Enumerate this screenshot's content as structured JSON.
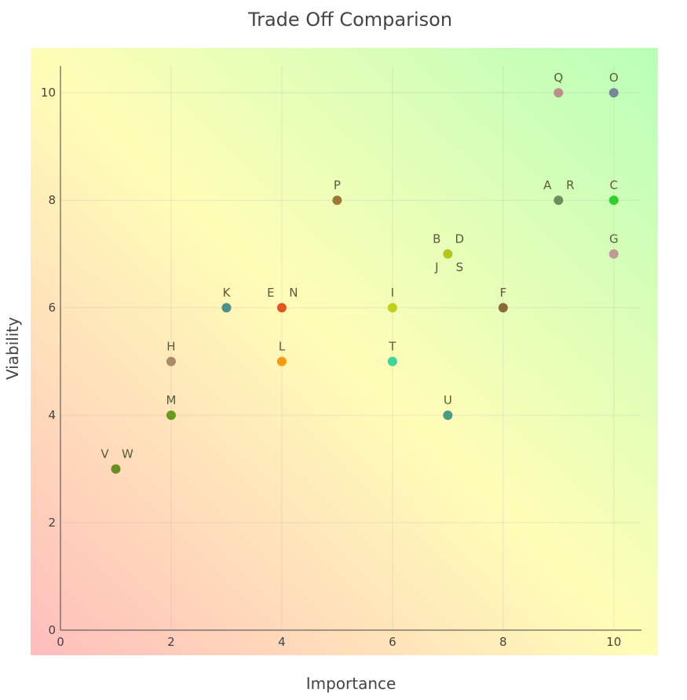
{
  "chart_data": {
    "type": "scatter",
    "title": "Trade Off Comparison",
    "xlabel": "Importance",
    "ylabel": "Viability",
    "xlim": [
      0,
      10.5
    ],
    "ylim": [
      0,
      10.5
    ],
    "x_ticks": [
      0,
      2,
      4,
      6,
      8,
      10
    ],
    "y_ticks": [
      0,
      2,
      4,
      6,
      8,
      10
    ],
    "grid": true,
    "background": "diagonal gradient: red (low-low) to yellow to green (high-high)",
    "point_labels": [
      {
        "text": "Q",
        "x": 9,
        "y": 10,
        "side": "center",
        "pos": "above"
      },
      {
        "text": "O",
        "x": 10,
        "y": 10,
        "side": "center",
        "pos": "above"
      },
      {
        "text": "P",
        "x": 5,
        "y": 8,
        "side": "center",
        "pos": "above"
      },
      {
        "text": "A",
        "x": 9,
        "y": 8,
        "side": "left",
        "pos": "above"
      },
      {
        "text": "R",
        "x": 9,
        "y": 8,
        "side": "right",
        "pos": "above"
      },
      {
        "text": "C",
        "x": 10,
        "y": 8,
        "side": "center",
        "pos": "above"
      },
      {
        "text": "B",
        "x": 7,
        "y": 7,
        "side": "left",
        "pos": "above"
      },
      {
        "text": "D",
        "x": 7,
        "y": 7,
        "side": "right",
        "pos": "above"
      },
      {
        "text": "J",
        "x": 7,
        "y": 7,
        "side": "left",
        "pos": "below"
      },
      {
        "text": "S",
        "x": 7,
        "y": 7,
        "side": "right",
        "pos": "below"
      },
      {
        "text": "G",
        "x": 10,
        "y": 7,
        "side": "center",
        "pos": "above"
      },
      {
        "text": "K",
        "x": 3,
        "y": 6,
        "side": "center",
        "pos": "above"
      },
      {
        "text": "E",
        "x": 4,
        "y": 6,
        "side": "left",
        "pos": "above"
      },
      {
        "text": "N",
        "x": 4,
        "y": 6,
        "side": "right",
        "pos": "above"
      },
      {
        "text": "I",
        "x": 6,
        "y": 6,
        "side": "center",
        "pos": "above"
      },
      {
        "text": "F",
        "x": 8,
        "y": 6,
        "side": "center",
        "pos": "above"
      },
      {
        "text": "H",
        "x": 2,
        "y": 5,
        "side": "center",
        "pos": "above"
      },
      {
        "text": "L",
        "x": 4,
        "y": 5,
        "side": "center",
        "pos": "above"
      },
      {
        "text": "T",
        "x": 6,
        "y": 5,
        "side": "center",
        "pos": "above"
      },
      {
        "text": "M",
        "x": 2,
        "y": 4,
        "side": "center",
        "pos": "above"
      },
      {
        "text": "U",
        "x": 7,
        "y": 4,
        "side": "center",
        "pos": "above"
      },
      {
        "text": "V",
        "x": 1,
        "y": 3,
        "side": "left",
        "pos": "above"
      },
      {
        "text": "W",
        "x": 1,
        "y": 3,
        "side": "right",
        "pos": "above"
      }
    ],
    "points": [
      {
        "x": 9,
        "y": 10,
        "color": "#bc8f8f"
      },
      {
        "x": 10,
        "y": 10,
        "color": "#778899"
      },
      {
        "x": 5,
        "y": 8,
        "color": "#9b7a35"
      },
      {
        "x": 9,
        "y": 8,
        "color": "#6b8e5a"
      },
      {
        "x": 10,
        "y": 8,
        "color": "#32cd32"
      },
      {
        "x": 7,
        "y": 7,
        "color": "#b6c41e"
      },
      {
        "x": 10,
        "y": 7,
        "color": "#c09a96"
      },
      {
        "x": 3,
        "y": 6,
        "color": "#4f8f8a"
      },
      {
        "x": 4,
        "y": 6,
        "color": "#e2551d"
      },
      {
        "x": 6,
        "y": 6,
        "color": "#c2cf1c"
      },
      {
        "x": 8,
        "y": 6,
        "color": "#8b6a3a"
      },
      {
        "x": 2,
        "y": 5,
        "color": "#ab8a67"
      },
      {
        "x": 4,
        "y": 5,
        "color": "#f39c12"
      },
      {
        "x": 6,
        "y": 5,
        "color": "#40d49a"
      },
      {
        "x": 2,
        "y": 4,
        "color": "#6c9a1e"
      },
      {
        "x": 7,
        "y": 4,
        "color": "#4a9a86"
      },
      {
        "x": 1,
        "y": 3,
        "color": "#6b8e23"
      }
    ]
  }
}
